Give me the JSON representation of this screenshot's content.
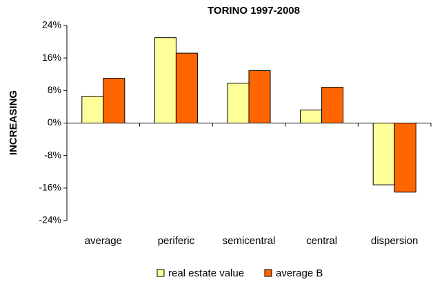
{
  "chart_data": {
    "type": "bar",
    "title": "TORINO 1997-2008",
    "y_label": "INCREASING",
    "categories": [
      "average",
      "periferic",
      "semicentral",
      "central",
      "dispersion"
    ],
    "series": [
      {
        "name": "real estate value",
        "color": "#ffff99",
        "values": [
          6.6,
          21,
          9.8,
          3.2,
          -15.2
        ]
      },
      {
        "name": "average B",
        "color": "#ff6600",
        "values": [
          11,
          17.2,
          12.9,
          8.8,
          -17
        ]
      }
    ],
    "ylim": [
      -24,
      24
    ],
    "yticks": [
      {
        "value": -24,
        "label": "-24%"
      },
      {
        "value": -16,
        "label": "-16%"
      },
      {
        "value": -8,
        "label": "-8%"
      },
      {
        "value": 0,
        "label": "0%"
      },
      {
        "value": 8,
        "label": "8%"
      },
      {
        "value": 16,
        "label": "16%"
      },
      {
        "value": 24,
        "label": "24%"
      }
    ],
    "grid": false
  }
}
